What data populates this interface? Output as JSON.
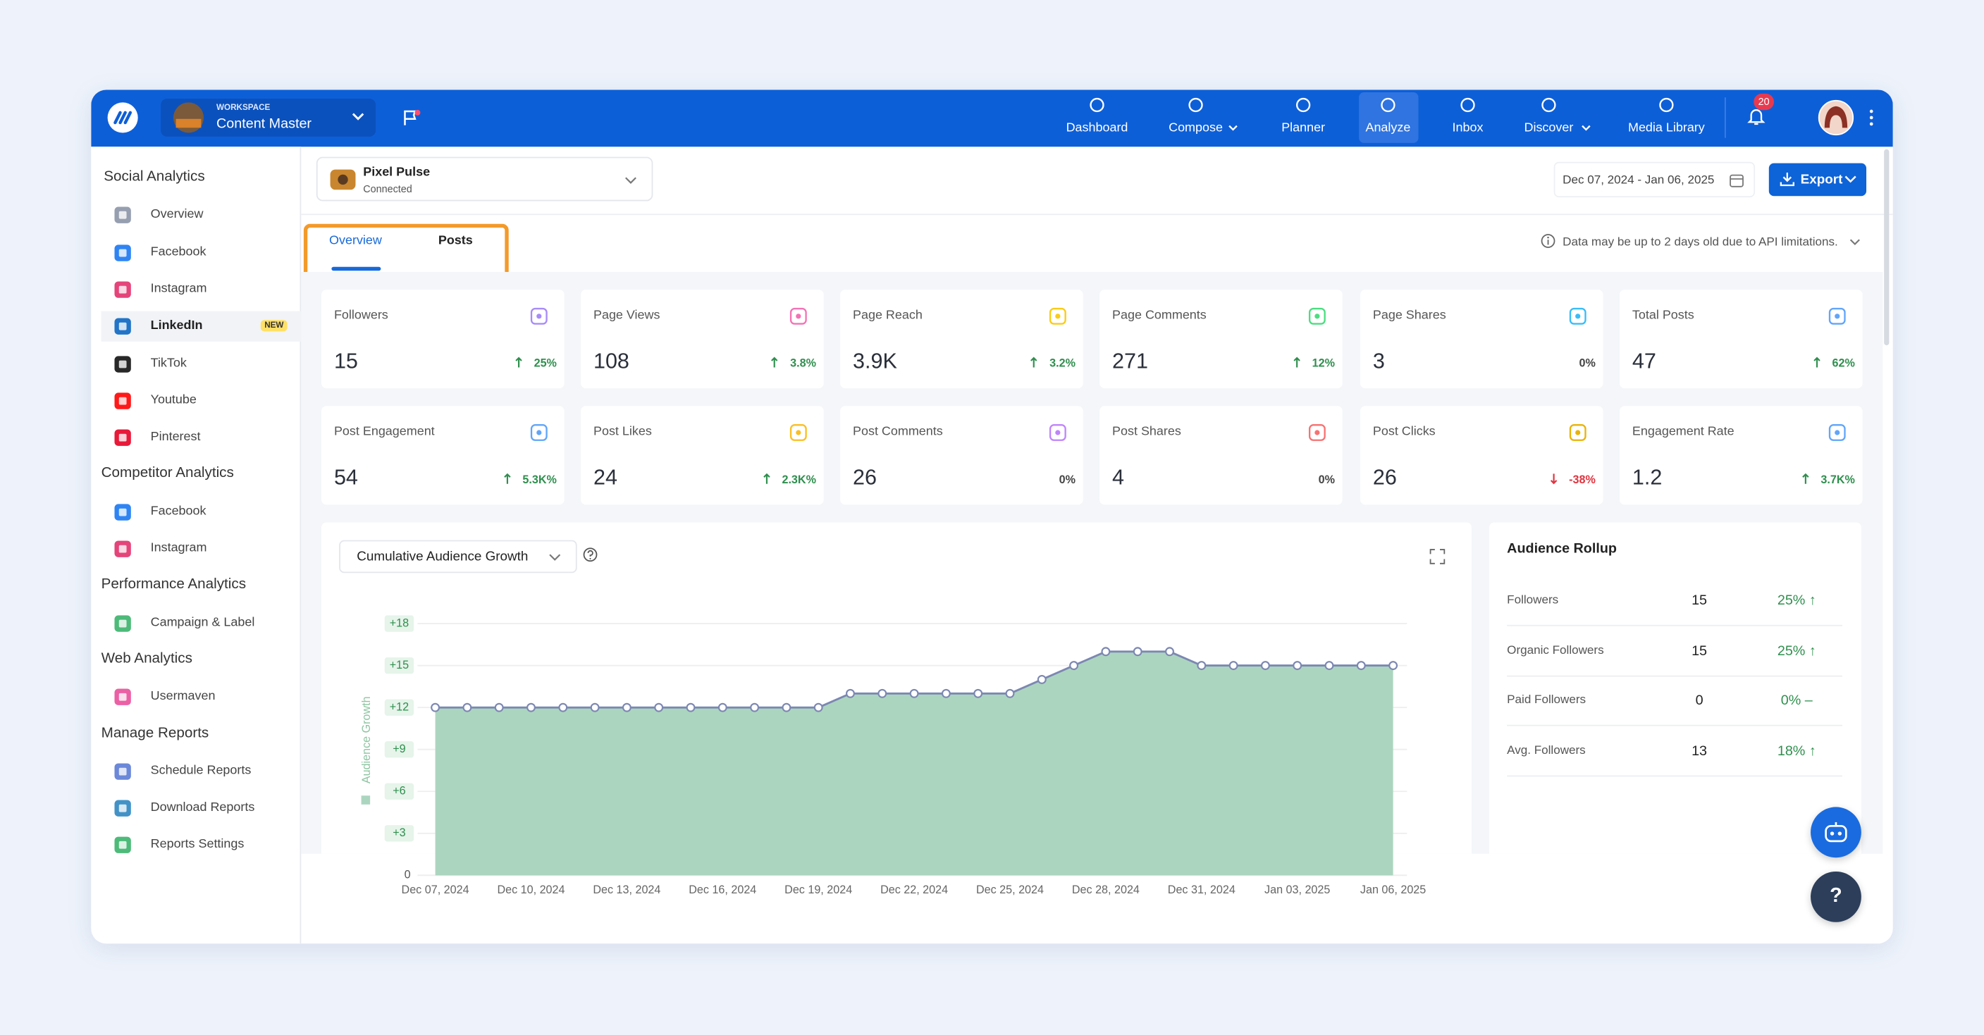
{
  "nav": {
    "workspace_label": "WORKSPACE",
    "workspace": "Content Master",
    "items": [
      "Dashboard",
      "Compose",
      "Planner",
      "Analyze",
      "Inbox",
      "Discover",
      "Media Library"
    ],
    "active": 3,
    "notifications": 20
  },
  "sidebar": [
    {
      "title": "Social Analytics",
      "items": [
        "Overview",
        "Facebook",
        "Instagram",
        "LinkedIn",
        "TikTok",
        "Youtube",
        "Pinterest"
      ]
    },
    {
      "title": "Competitor Analytics",
      "items": [
        "Facebook",
        "Instagram"
      ]
    },
    {
      "title": "Performance Analytics",
      "items": [
        "Campaign & Label"
      ]
    },
    {
      "title": "Web Analytics",
      "items": [
        "Usermaven"
      ]
    },
    {
      "title": "Manage Reports",
      "items": [
        "Schedule Reports",
        "Download Reports",
        "Reports Settings"
      ]
    }
  ],
  "sidebar_active": [
    0,
    3
  ],
  "sidebar_badge": "NEW",
  "account": {
    "name": "Pixel Pulse",
    "status": "Connected"
  },
  "date_range": "Dec 07, 2024 - Jan 06, 2025",
  "export": "Export",
  "tabs": [
    "Overview",
    "Posts"
  ],
  "tab_active": 0,
  "notice": "Data may be up to 2 days old due to API limitations.",
  "metrics": [
    {
      "label": "Followers",
      "value": 15,
      "change": "25%",
      "trend": "up"
    },
    {
      "label": "Page Views",
      "value": 108,
      "change": "3.8%",
      "trend": "up"
    },
    {
      "label": "Page Reach",
      "value": "3.9K",
      "change": "3.2%",
      "trend": "up"
    },
    {
      "label": "Page Comments",
      "value": 271,
      "change": "12%",
      "trend": "up"
    },
    {
      "label": "Page Shares",
      "value": 3,
      "change": "0%"
    },
    {
      "label": "Total Posts",
      "value": 47,
      "change": "62%",
      "trend": "up"
    },
    {
      "label": "Post Engagement",
      "value": 54,
      "change": "5.3K%",
      "trend": "up"
    },
    {
      "label": "Post Likes",
      "value": 24,
      "change": "2.3K%",
      "trend": "up"
    },
    {
      "label": "Post Comments",
      "value": 26,
      "change": "0%"
    },
    {
      "label": "Post Shares",
      "value": 4,
      "change": "0%"
    },
    {
      "label": "Post Clicks",
      "value": 26,
      "change": "-38%",
      "trend": "down"
    },
    {
      "label": "Engagement Rate",
      "value": 1.2,
      "change": "3.7K%",
      "trend": "up"
    }
  ],
  "chart_data": {
    "type": "area",
    "title": "Cumulative Audience Growth",
    "ylabel": "Audience Growth",
    "categories": [
      "Dec 07, 2024",
      null,
      null,
      "Dec 10, 2024",
      null,
      null,
      "Dec 13, 2024",
      null,
      null,
      "Dec 16, 2024",
      null,
      null,
      "Dec 19, 2024",
      null,
      null,
      "Dec 22, 2024",
      null,
      null,
      "Dec 25, 2024",
      null,
      null,
      "Dec 28, 2024",
      null,
      null,
      "Dec 31, 2024",
      null,
      null,
      "Jan 03, 2025",
      null,
      null,
      "Jan 06, 2025"
    ],
    "values": [
      12,
      12,
      12,
      12,
      12,
      12,
      12,
      12,
      12,
      12,
      12,
      12,
      12,
      13,
      13,
      13,
      13,
      13,
      13,
      14,
      15,
      16,
      16,
      16,
      15,
      15,
      15,
      15,
      15,
      15,
      15
    ],
    "color": "#acd5bf",
    "line_color": "#7c87b2",
    "ylim": [
      0,
      18
    ],
    "yticks": [
      0,
      {
        "value": 3,
        "label": "+3"
      },
      {
        "value": 6,
        "label": "+6"
      },
      {
        "value": 9,
        "label": "+9"
      },
      {
        "value": 12,
        "label": "+12"
      },
      {
        "value": 15,
        "label": "+15"
      },
      {
        "value": 18,
        "label": "+18"
      }
    ],
    "grid": true
  },
  "rollup": {
    "title": "Audience Rollup",
    "rows": [
      {
        "label": "Followers",
        "value": 15,
        "change": "25% ↑"
      },
      {
        "label": "Organic Followers",
        "value": 15,
        "change": "25% ↑"
      },
      {
        "label": "Paid Followers",
        "value": 0,
        "change": "0% –"
      },
      {
        "label": "Avg. Followers",
        "value": 13,
        "change": "18% ↑"
      }
    ]
  },
  "help": "?"
}
